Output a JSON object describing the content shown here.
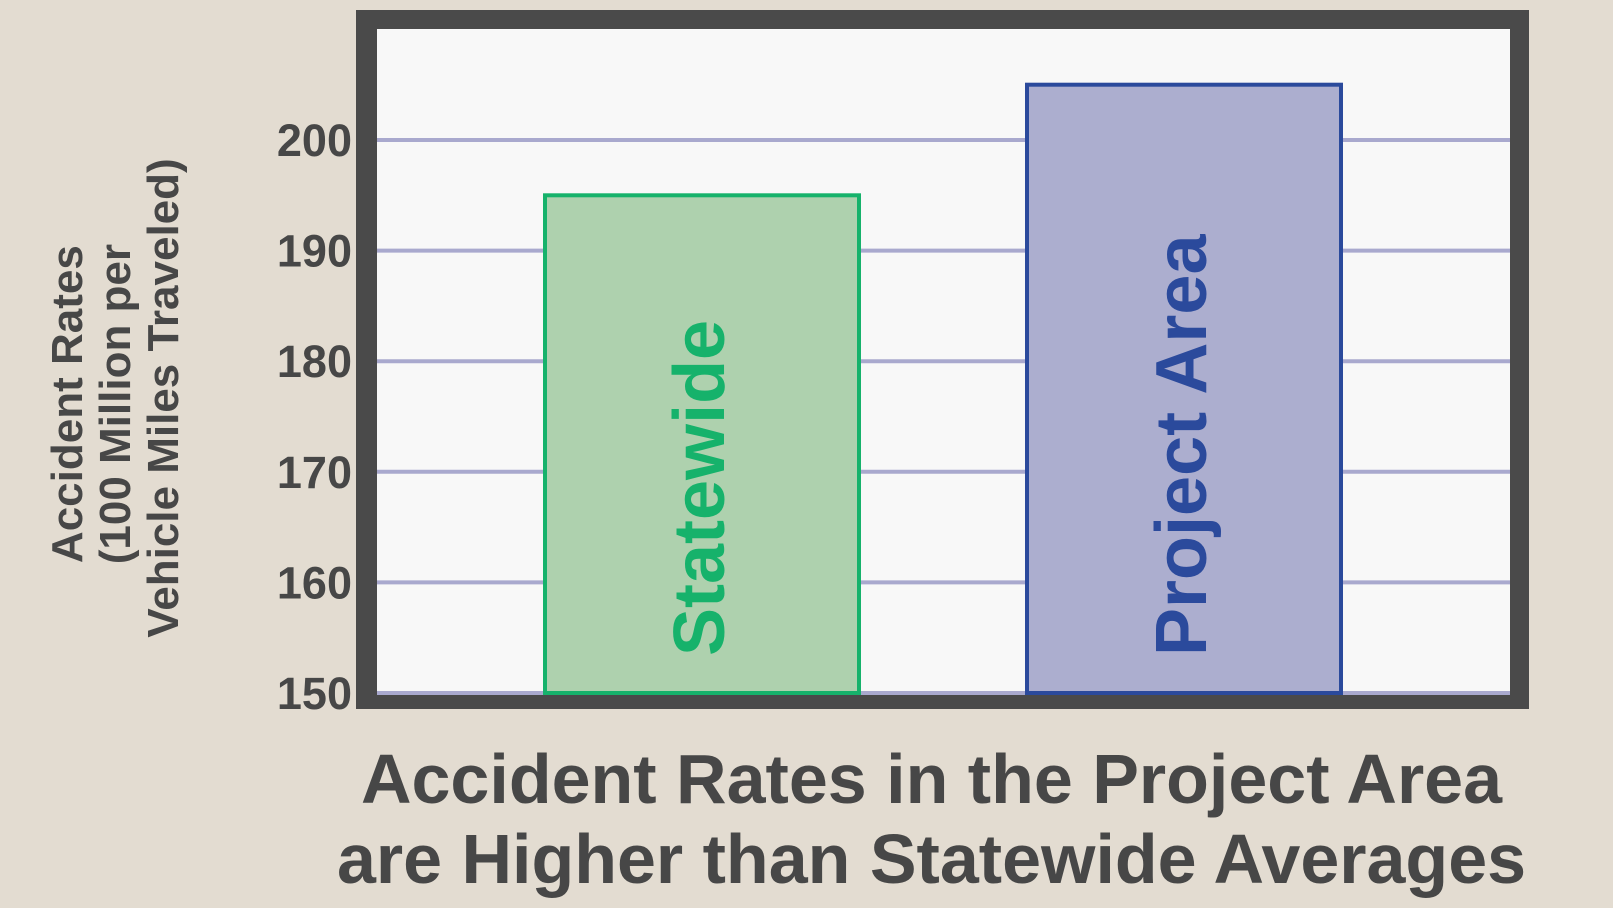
{
  "chart_data": {
    "type": "bar",
    "categories": [
      "Statewide",
      "Project Area"
    ],
    "values": [
      195,
      205
    ],
    "ylabel_lines": [
      "Accident Rates",
      "(100 Million per",
      "Vehicle Miles Traveled)"
    ],
    "yticks": [
      150,
      160,
      170,
      180,
      190,
      200
    ],
    "ylim": [
      150,
      210
    ],
    "grid": true,
    "title_lines": [
      "Accident Rates in the Project Area",
      "are Higher than Statewide Averages"
    ],
    "colors": {
      "background": "#e3dcd1",
      "frame": "#4a4a4a",
      "plot_area": "#f8f8f8",
      "gridline": "#a9a9ce",
      "axis_text": "#474747",
      "bars": [
        {
          "fill": "#aed1ae",
          "stroke": "#16b26b",
          "label": "#16b26b"
        },
        {
          "fill": "#acaecf",
          "stroke": "#2b4a9c",
          "label": "#2b4a9c"
        }
      ]
    }
  }
}
